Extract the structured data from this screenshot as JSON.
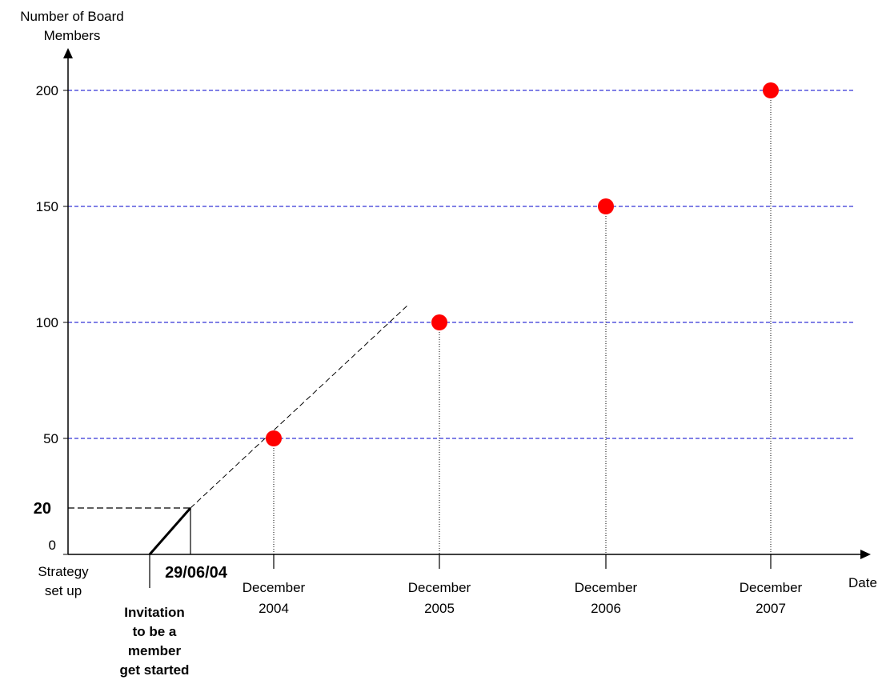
{
  "chart_data": {
    "type": "scatter",
    "ylabel_lines": [
      "Number of Board",
      "Members"
    ],
    "xlabel": "Date",
    "ylim": [
      0,
      200
    ],
    "yticks": [
      {
        "label": "0",
        "value": 0
      },
      {
        "label": "50",
        "value": 50
      },
      {
        "label": "100",
        "value": 100
      },
      {
        "label": "150",
        "value": 150
      },
      {
        "label": "200",
        "value": 200
      }
    ],
    "highlight_tick": {
      "label": "20",
      "value": 20,
      "color": "#c0390f"
    },
    "grid": {
      "values": [
        50,
        100,
        150,
        200
      ],
      "color": "#0000cc",
      "style": "dashed"
    },
    "points": [
      {
        "x": "December 2004",
        "x_lines": [
          "December",
          "2004"
        ],
        "y": 50
      },
      {
        "x": "December 2005",
        "x_lines": [
          "December",
          "2005"
        ],
        "y": 100
      },
      {
        "x": "December 2006",
        "x_lines": [
          "December",
          "2006"
        ],
        "y": 150
      },
      {
        "x": "December 2007",
        "x_lines": [
          "December",
          "2007"
        ],
        "y": 200
      }
    ],
    "point_color": "#ff0000",
    "start_event": {
      "lines": [
        "Strategy",
        "set up"
      ]
    },
    "invitation_event": {
      "lines": [
        "Invitation",
        "to be a",
        "member",
        "get started"
      ],
      "y": 0
    },
    "milestone": {
      "label": "29/06/04",
      "y": 20,
      "color": "#c0390f"
    },
    "trend": {
      "style": "dashed",
      "from_y": 20
    }
  }
}
